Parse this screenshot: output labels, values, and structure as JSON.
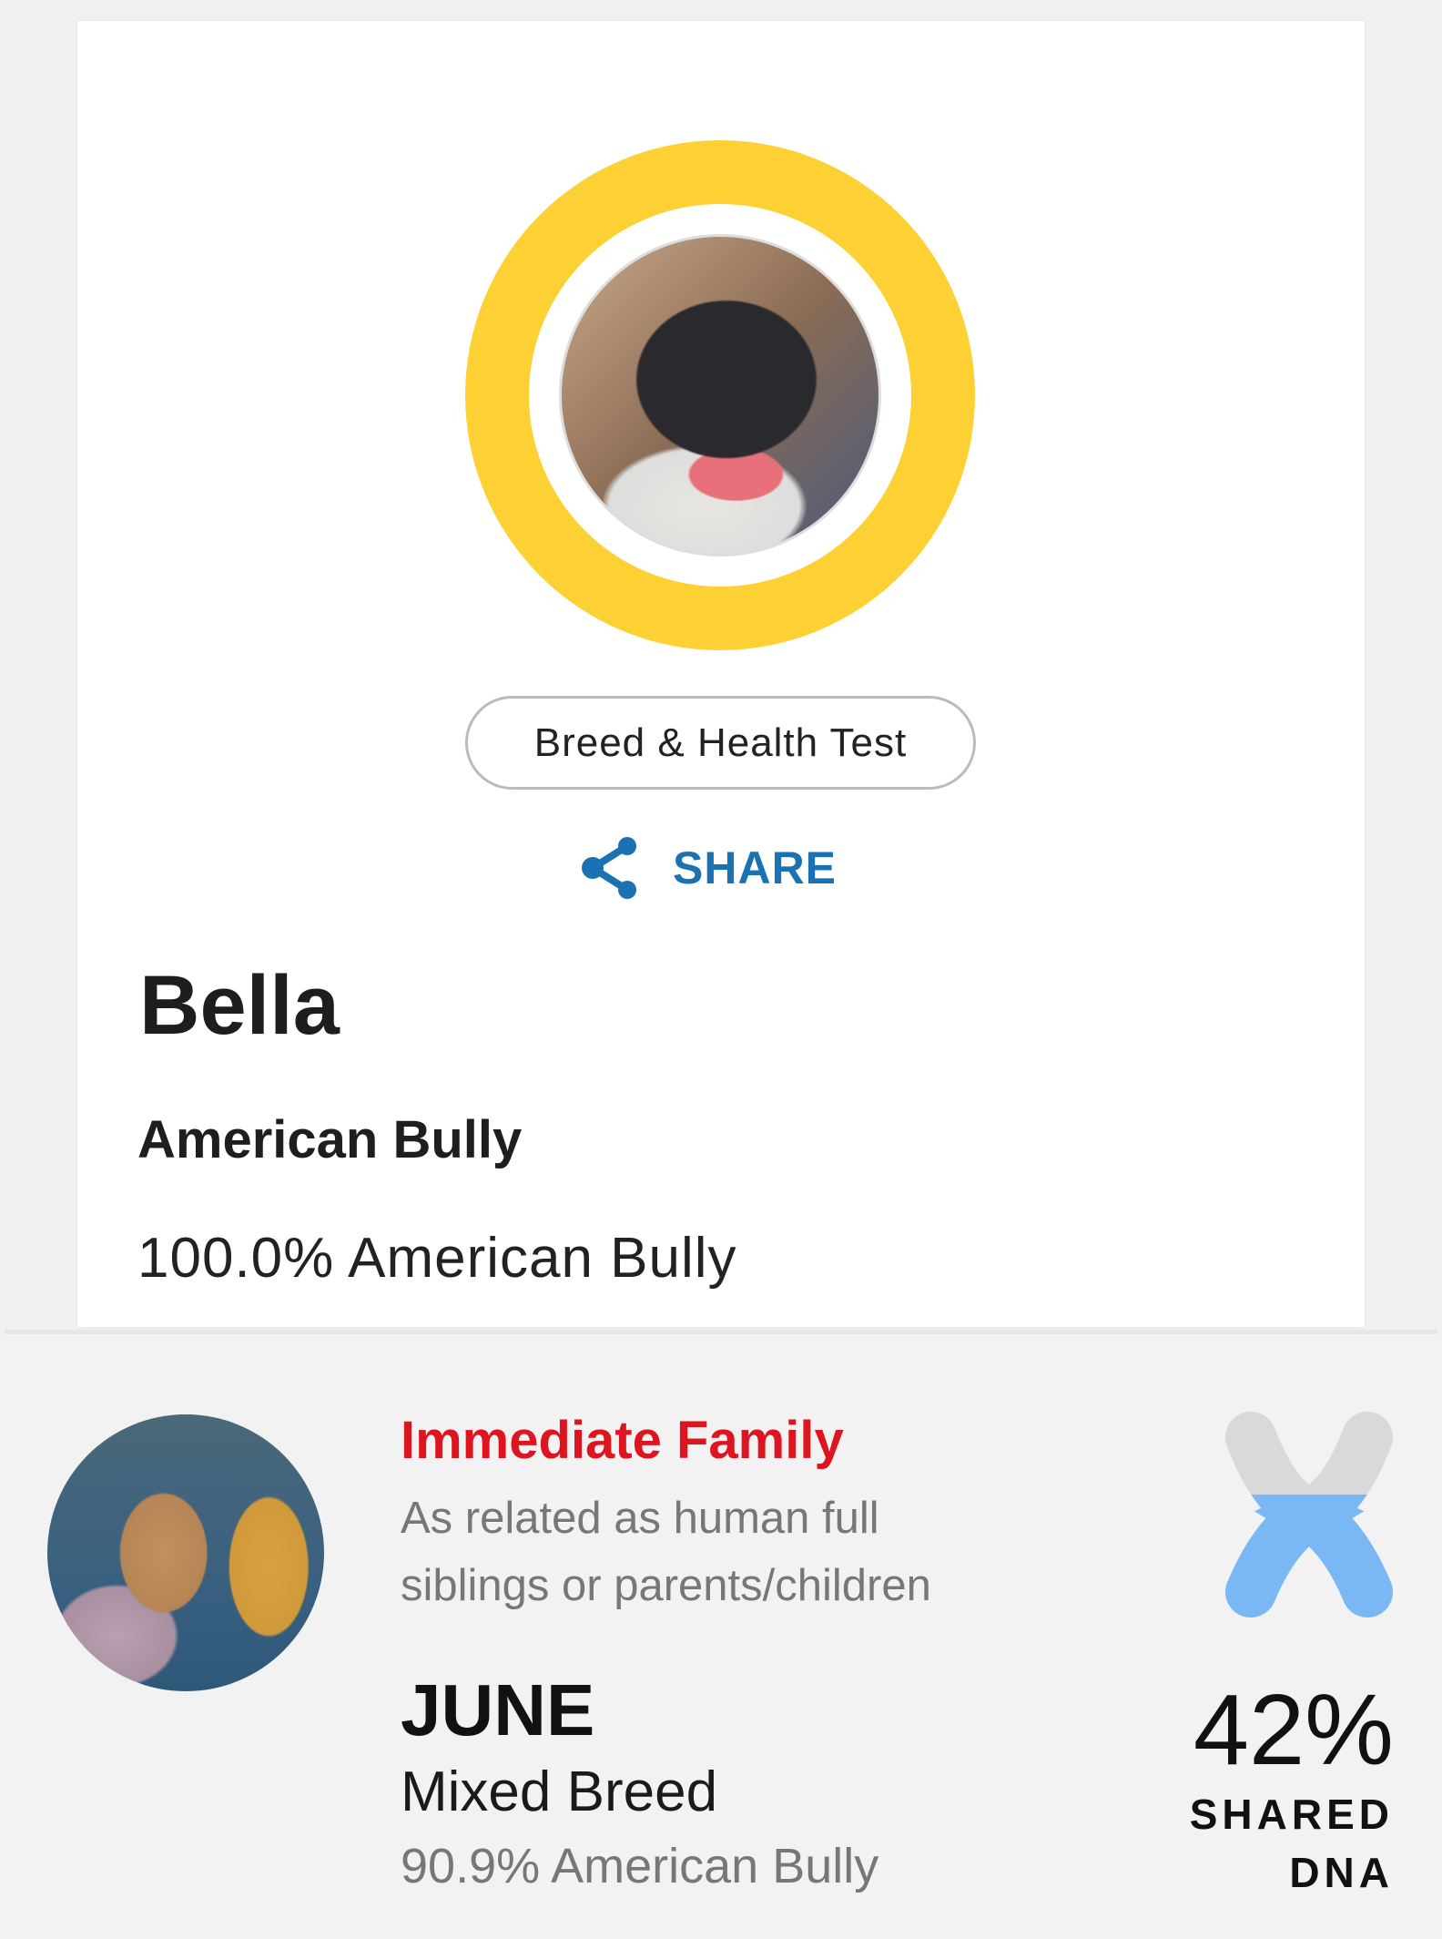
{
  "pet": {
    "name": "Bella",
    "breed": "American Bully",
    "breed_breakdown": "100.0% American Bully",
    "ring_color": "#fdd134",
    "test_button": "Breed & Health Test",
    "share_label": "SHARE",
    "share_icon": "share-icon"
  },
  "match": {
    "relationship": "Immediate Family",
    "description_line1": "As related as human full",
    "description_line2": "siblings or parents/children",
    "name": "JUNE",
    "breed": "Mixed Breed",
    "breed_breakdown": "90.9% American Bully",
    "shared_percent": "42%",
    "shared_label1": "SHARED",
    "shared_label2": "DNA",
    "shared_fraction": 0.42,
    "relationship_color": "#dd1520",
    "chromosome_colors": {
      "shared": "#7ab8f5",
      "unshared": "#d9d9d9"
    }
  }
}
